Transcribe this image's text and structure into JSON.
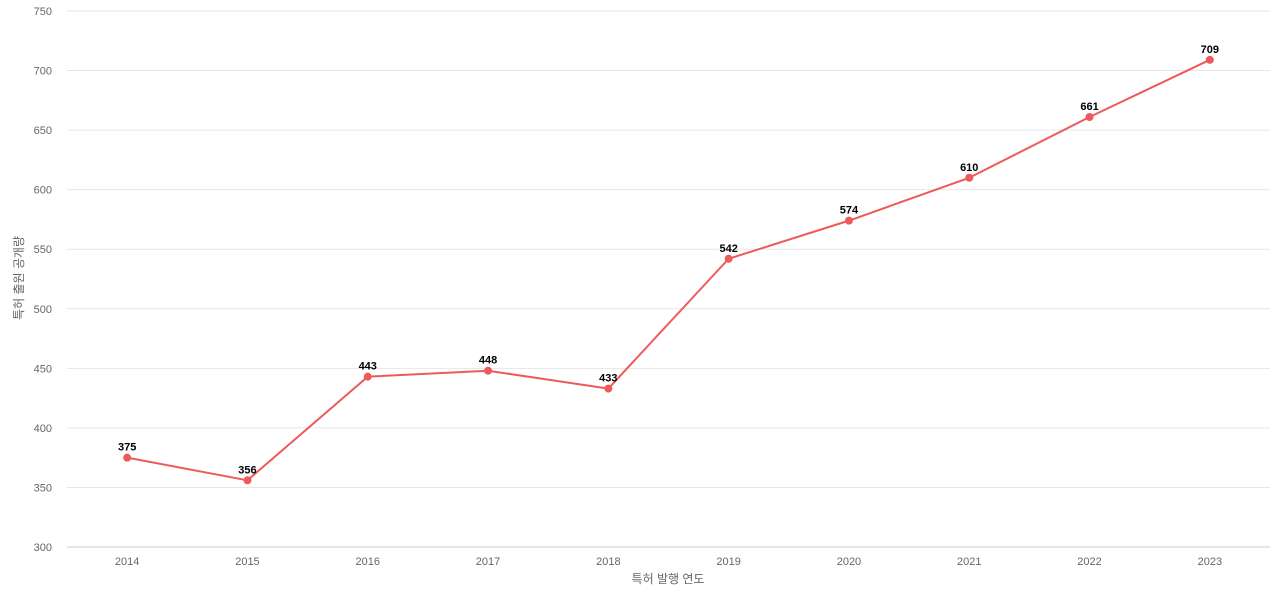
{
  "chart_data": {
    "type": "line",
    "title": "",
    "xlabel": "특허 발행 연도",
    "ylabel": "특허 출원 공개량",
    "x": [
      "2014",
      "2015",
      "2016",
      "2017",
      "2018",
      "2019",
      "2020",
      "2021",
      "2022",
      "2023"
    ],
    "series": [
      {
        "values": [
          375,
          356,
          443,
          448,
          433,
          542,
          574,
          610,
          661,
          709
        ]
      }
    ],
    "ylim": [
      300,
      750
    ],
    "yticks": [
      300,
      350,
      400,
      450,
      500,
      550,
      600,
      650,
      700,
      750
    ],
    "grid": true,
    "legend": "none",
    "data_labels": true,
    "line_color": "#EE5A5A",
    "grid_color": "#E6E6E6",
    "axis_line_color": "#CCCCCC",
    "label_color": "#666666",
    "data_label_color": "#000000"
  }
}
